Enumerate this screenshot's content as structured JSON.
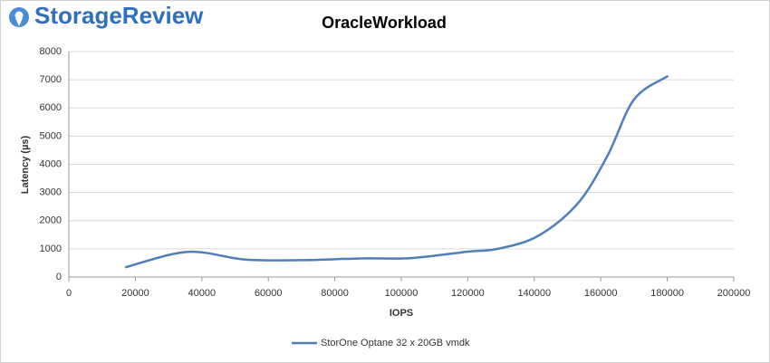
{
  "brand": "StorageReview",
  "chart_data": {
    "type": "line",
    "title": "OracleWorkload",
    "x_label": "IOPS",
    "y_label": "Latency (µs)",
    "x": [
      17200,
      35700,
      53000,
      70000,
      88000,
      103000,
      120000,
      129000,
      141000,
      153000,
      162000,
      170000,
      180000
    ],
    "series": [
      {
        "name": "StorOne Optane 32 x 20GB vmdk",
        "color": "#4f7fb8",
        "values": [
          350,
          890,
          620,
          600,
          660,
          670,
          900,
          1000,
          1450,
          2600,
          4300,
          6300,
          7120
        ]
      }
    ],
    "xlim": [
      0,
      200000
    ],
    "xticks": [
      0,
      20000,
      40000,
      60000,
      80000,
      100000,
      120000,
      140000,
      160000,
      180000,
      200000
    ],
    "ylim": [
      0,
      8000
    ],
    "yticks": [
      0,
      1000,
      2000,
      3000,
      4000,
      5000,
      6000,
      7000,
      8000
    ],
    "grid": true,
    "smooth": true,
    "legend": "bottom"
  }
}
